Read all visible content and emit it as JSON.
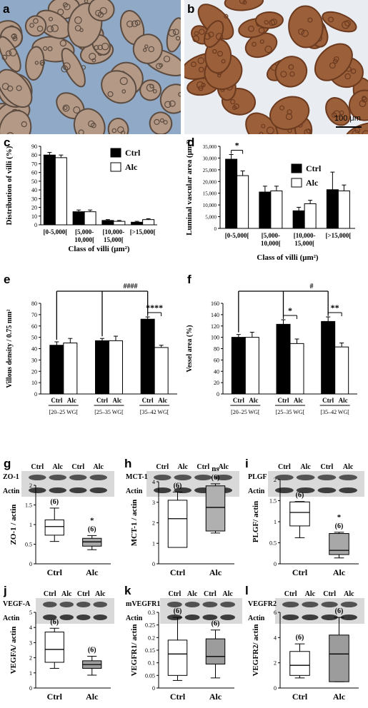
{
  "panel_letters": {
    "a": "a",
    "b": "b",
    "c": "c",
    "d": "d",
    "e": "e",
    "f": "f",
    "g": "g",
    "h": "h",
    "i": "i",
    "j": "j",
    "k": "k",
    "l": "l"
  },
  "scale_bar_label": "100 μm",
  "colors": {
    "ctrl": "#000000",
    "alc": "#ffffff",
    "micro_a_bg": "#8fa9c6",
    "micro_b_bg": "#e9edf2",
    "villus_a": "#b49a86",
    "villus_b": "#9b5f3a"
  },
  "chart_data": [
    {
      "id": "c",
      "type": "bar",
      "categories": [
        "[0-5,000[",
        "[5,000-\n10,000[",
        "[10,000-\n15,000[",
        "[>15,000["
      ],
      "series": [
        {
          "name": "Ctrl",
          "values": [
            80,
            15,
            5,
            3
          ]
        },
        {
          "name": "Alc",
          "values": [
            77,
            15,
            4,
            6
          ]
        }
      ],
      "errors": [
        [
          3,
          2,
          1,
          1
        ],
        [
          3,
          2,
          1,
          1
        ]
      ],
      "ylabel": "Distribution of villi (%)",
      "xlabel": "Class of villi (μm²)",
      "ylim": [
        0,
        90
      ],
      "yticks": [
        0,
        10,
        20,
        30,
        40,
        50,
        60,
        70,
        80,
        90
      ],
      "legend": "top-right",
      "annotations": []
    },
    {
      "id": "d",
      "type": "bar",
      "categories": [
        "[0-5,000[",
        "[5,000-\n10,000[",
        "[10,000-\n15,000[",
        "[>15,000["
      ],
      "series": [
        {
          "name": "Ctrl",
          "values": [
            29500,
            15500,
            7500,
            16500
          ]
        },
        {
          "name": "Alc",
          "values": [
            22500,
            16000,
            10500,
            16000
          ]
        }
      ],
      "errors": [
        [
          2000,
          2500,
          1500,
          7500
        ],
        [
          2000,
          2000,
          1500,
          2500
        ]
      ],
      "ylabel": "Luminal vascular area (μm²)",
      "xlabel": "Class of villi (μm²)",
      "ylim": [
        0,
        35000
      ],
      "yticks": [
        0,
        5000,
        10000,
        15000,
        20000,
        25000,
        30000,
        35000
      ],
      "yticklabels": [
        "0",
        "5,000",
        "10,000",
        "15,000",
        "20,000",
        "25,000",
        "30,000",
        "35,000"
      ],
      "legend": "top-right",
      "annotations": [
        {
          "text": "*",
          "category": 0
        }
      ]
    },
    {
      "id": "e",
      "type": "bar",
      "categories": [
        "[20–25 WG[",
        "[25–35 WG[",
        "[35–42 WG["
      ],
      "tick_pair": [
        "Ctrl",
        "Alc"
      ],
      "series": [
        {
          "name": "Ctrl",
          "values": [
            43,
            47,
            66
          ]
        },
        {
          "name": "Alc",
          "values": [
            45,
            47,
            41
          ]
        }
      ],
      "errors": [
        [
          3,
          2,
          2
        ],
        [
          4,
          4,
          2
        ]
      ],
      "ylabel": "Villous density / 0.75 mm²",
      "xlabel": "",
      "ylim": [
        0,
        80
      ],
      "yticks": [
        0,
        10,
        20,
        30,
        40,
        50,
        60,
        70,
        80
      ],
      "annotations": [
        {
          "text": "****",
          "category": 2
        },
        {
          "text": "####",
          "bracket": true
        }
      ]
    },
    {
      "id": "f",
      "type": "bar",
      "categories": [
        "[20–25 WG[",
        "[25–35 WG[",
        "[35–42 WG["
      ],
      "tick_pair": [
        "Ctrl",
        "Alc"
      ],
      "series": [
        {
          "name": "Ctrl",
          "values": [
            100,
            123,
            128
          ]
        },
        {
          "name": "Alc",
          "values": [
            100,
            89,
            83
          ]
        }
      ],
      "errors": [
        [
          5,
          8,
          8
        ],
        [
          9,
          8,
          7
        ]
      ],
      "ylabel": "Vessel area (%)",
      "xlabel": "",
      "ylim": [
        0,
        160
      ],
      "yticks": [
        0,
        20,
        40,
        60,
        80,
        100,
        120,
        140,
        160
      ],
      "annotations": [
        {
          "text": "*",
          "category": 1
        },
        {
          "text": "**",
          "category": 2
        },
        {
          "text": "#",
          "bracket": true
        }
      ]
    },
    {
      "id": "g",
      "type": "box",
      "blot_labels": [
        "ZO-1",
        "Actin"
      ],
      "lanes": [
        "Ctrl",
        "Alc",
        "Ctrl",
        "Alc"
      ],
      "categories": [
        "Ctrl",
        "Alc"
      ],
      "ylabel": "ZO-1 / actin",
      "ylim": [
        0,
        2
      ],
      "yticks": [
        0,
        0.5,
        1,
        1.5,
        2
      ],
      "yticklabels": [
        "0",
        "0.5",
        "1",
        "1.5",
        "2"
      ],
      "boxes": [
        {
          "min": 0.57,
          "q1": 0.73,
          "median": 0.95,
          "q3": 1.12,
          "max": 1.42,
          "fill": "#ffffff"
        },
        {
          "min": 0.36,
          "q1": 0.45,
          "median": 0.56,
          "q3": 0.65,
          "max": 0.72,
          "fill": "#a8a8a8"
        }
      ],
      "n_labels": [
        "(6)",
        "(6)"
      ],
      "sig": [
        {
          "text": "*",
          "box": 1
        }
      ]
    },
    {
      "id": "h",
      "type": "box",
      "blot_labels": [
        "MCT-1",
        "Actin"
      ],
      "lanes": [
        "Ctrl",
        "Alc",
        "Ctrl",
        "Alc"
      ],
      "categories": [
        "Ctrl",
        "Alc"
      ],
      "ylabel": "MCT-1 / actin",
      "ylim": [
        0,
        4
      ],
      "yticks": [
        0,
        1,
        2,
        3,
        4
      ],
      "yticklabels": [
        "0",
        "1",
        "2",
        "3",
        "4"
      ],
      "boxes": [
        {
          "min": 0.8,
          "q1": 0.8,
          "median": 2.2,
          "q3": 3.1,
          "max": 3.5,
          "fill": "#ffffff"
        },
        {
          "min": 1.5,
          "q1": 1.6,
          "median": 2.75,
          "q3": 3.8,
          "max": 3.9,
          "fill": "#b0b0b0"
        }
      ],
      "n_labels": [
        "(6)",
        "(6)"
      ],
      "sig": [
        {
          "text": "ns",
          "box": 1
        }
      ]
    },
    {
      "id": "i",
      "type": "box",
      "blot_labels": [
        "PLGF",
        "Actin"
      ],
      "lanes": [
        "Ctrl",
        "Alc",
        "Ctrl",
        "Alc"
      ],
      "categories": [
        "Ctrl",
        "Alc"
      ],
      "ylabel": "PLGF/ actin",
      "ylim": [
        0,
        2
      ],
      "yticks": [
        0,
        0.5,
        1,
        1.5,
        2
      ],
      "yticklabels": [
        "0",
        "0.5",
        "1",
        "1.5",
        "2"
      ],
      "boxes": [
        {
          "min": 0.62,
          "q1": 0.9,
          "median": 1.22,
          "q3": 1.47,
          "max": 1.48,
          "fill": "#ffffff"
        },
        {
          "min": 0.14,
          "q1": 0.22,
          "median": 0.32,
          "q3": 0.72,
          "max": 0.75,
          "fill": "#a8a8a8"
        }
      ],
      "n_labels": [
        "(6)",
        "(6)"
      ],
      "sig": [
        {
          "text": "*",
          "box": 1
        }
      ]
    },
    {
      "id": "j",
      "type": "box",
      "blot_labels": [
        "VEGF-A",
        "Actin"
      ],
      "lanes": [
        "Ctrl",
        "Alc",
        "Ctrl",
        "Alc"
      ],
      "categories": [
        "Ctrl",
        "Alc"
      ],
      "ylabel": "VEGFA/ actin",
      "ylim": [
        0,
        5
      ],
      "yticks": [
        0,
        1,
        2,
        3,
        4,
        5
      ],
      "yticklabels": [
        "0",
        "1",
        "2",
        "3",
        "4",
        "5"
      ],
      "boxes": [
        {
          "min": 1.3,
          "q1": 1.7,
          "median": 2.55,
          "q3": 3.7,
          "max": 3.95,
          "fill": "#ffffff"
        },
        {
          "min": 0.85,
          "q1": 1.3,
          "median": 1.55,
          "q3": 1.8,
          "max": 2.1,
          "fill": "#9c9c9c"
        }
      ],
      "n_labels": [
        "(6)",
        "(6)"
      ],
      "sig": []
    },
    {
      "id": "k",
      "type": "box",
      "blot_labels": [
        "mVEGFR1",
        "Actin"
      ],
      "lanes": [
        "Ctrl",
        "Alc",
        "Ctrl",
        "Alc"
      ],
      "categories": [
        "Ctrl",
        "Alc"
      ],
      "ylabel": "VEGFR1/ actin",
      "ylim": [
        0,
        0.3
      ],
      "yticks": [
        0,
        0.05,
        0.1,
        0.15,
        0.2,
        0.25,
        0.3
      ],
      "yticklabels": [
        "0",
        "0.05",
        "0.1",
        "0.15",
        "0.2",
        "0.25",
        "0.3"
      ],
      "boxes": [
        {
          "min": 0.03,
          "q1": 0.05,
          "median": 0.135,
          "q3": 0.19,
          "max": 0.28,
          "fill": "#ffffff"
        },
        {
          "min": 0.04,
          "q1": 0.095,
          "median": 0.125,
          "q3": 0.195,
          "max": 0.23,
          "fill": "#9c9c9c"
        }
      ],
      "n_labels": [
        "(6)",
        "(6)"
      ],
      "sig": []
    },
    {
      "id": "l",
      "type": "box",
      "blot_labels": [
        "VEGFR2",
        "Actin"
      ],
      "lanes": [
        "Ctrl",
        "Alc",
        "Ctrl",
        "Alc"
      ],
      "categories": [
        "Ctrl",
        "Alc"
      ],
      "ylabel": "VEGFR2/ actin",
      "ylim": [
        0,
        6
      ],
      "yticks": [
        0,
        2,
        4,
        6
      ],
      "yticklabels": [
        "0",
        "2",
        "4",
        "6"
      ],
      "boxes": [
        {
          "min": 0.8,
          "q1": 1.0,
          "median": 1.8,
          "q3": 2.9,
          "max": 3.5,
          "fill": "#ffffff"
        },
        {
          "min": 0.5,
          "q1": 0.5,
          "median": 2.7,
          "q3": 4.2,
          "max": 5.6,
          "fill": "#9c9c9c"
        }
      ],
      "n_labels": [
        "(6)",
        "(6)"
      ],
      "sig": []
    }
  ]
}
